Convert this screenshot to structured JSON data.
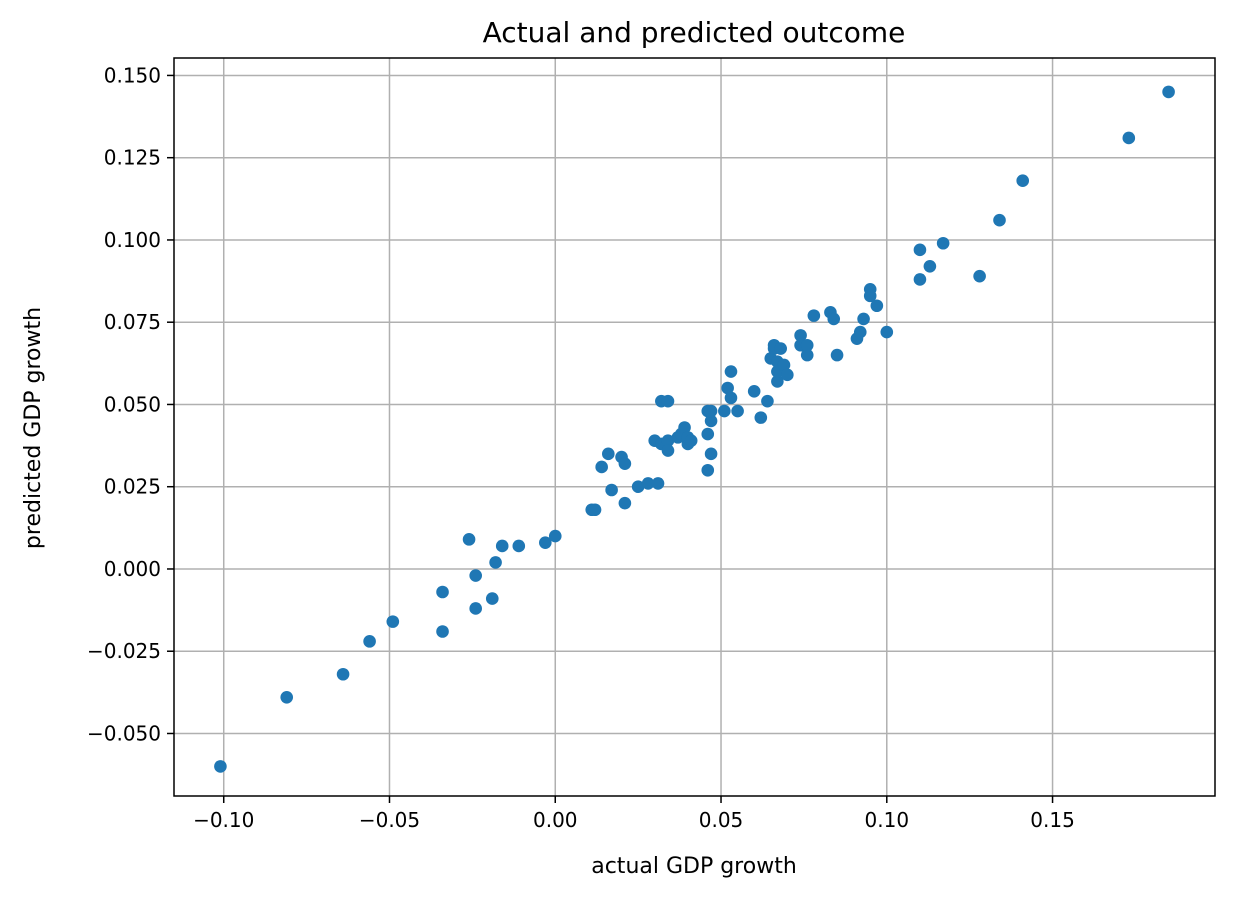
{
  "chart_data": {
    "type": "scatter",
    "title": "Actual and predicted outcome",
    "xlabel": "actual GDP growth",
    "ylabel": "predicted GDP growth",
    "xlim": [
      -0.115,
      0.199
    ],
    "ylim": [
      -0.069,
      0.1553
    ],
    "grid": true,
    "x_ticks": [
      -0.1,
      -0.05,
      0.0,
      0.05,
      0.1,
      0.15
    ],
    "x_tick_labels": [
      "−0.10",
      "−0.05",
      "0.00",
      "0.05",
      "0.10",
      "0.15"
    ],
    "y_ticks": [
      -0.05,
      -0.025,
      0.0,
      0.025,
      0.05,
      0.075,
      0.1,
      0.125,
      0.15
    ],
    "y_tick_labels": [
      "−0.050",
      "−0.025",
      "0.000",
      "0.025",
      "0.050",
      "0.075",
      "0.100",
      "0.125",
      "0.150"
    ],
    "marker_color": "#1f77b4",
    "points": [
      [
        -0.101,
        -0.06
      ],
      [
        -0.081,
        -0.039
      ],
      [
        -0.064,
        -0.032
      ],
      [
        -0.056,
        -0.022
      ],
      [
        -0.049,
        -0.016
      ],
      [
        -0.034,
        -0.007
      ],
      [
        -0.034,
        -0.019
      ],
      [
        -0.026,
        0.009
      ],
      [
        -0.024,
        -0.002
      ],
      [
        -0.024,
        -0.012
      ],
      [
        -0.019,
        -0.009
      ],
      [
        -0.018,
        0.002
      ],
      [
        -0.016,
        0.007
      ],
      [
        -0.011,
        0.007
      ],
      [
        -0.003,
        0.008
      ],
      [
        0.0,
        0.01
      ],
      [
        0.011,
        0.018
      ],
      [
        0.012,
        0.018
      ],
      [
        0.014,
        0.031
      ],
      [
        0.016,
        0.035
      ],
      [
        0.017,
        0.024
      ],
      [
        0.02,
        0.034
      ],
      [
        0.021,
        0.02
      ],
      [
        0.021,
        0.032
      ],
      [
        0.025,
        0.025
      ],
      [
        0.028,
        0.026
      ],
      [
        0.03,
        0.039
      ],
      [
        0.031,
        0.026
      ],
      [
        0.032,
        0.038
      ],
      [
        0.032,
        0.051
      ],
      [
        0.034,
        0.051
      ],
      [
        0.034,
        0.039
      ],
      [
        0.034,
        0.036
      ],
      [
        0.037,
        0.04
      ],
      [
        0.038,
        0.041
      ],
      [
        0.039,
        0.043
      ],
      [
        0.04,
        0.038
      ],
      [
        0.04,
        0.04
      ],
      [
        0.041,
        0.039
      ],
      [
        0.046,
        0.03
      ],
      [
        0.046,
        0.041
      ],
      [
        0.046,
        0.048
      ],
      [
        0.047,
        0.035
      ],
      [
        0.047,
        0.045
      ],
      [
        0.047,
        0.048
      ],
      [
        0.051,
        0.048
      ],
      [
        0.052,
        0.055
      ],
      [
        0.053,
        0.052
      ],
      [
        0.053,
        0.06
      ],
      [
        0.055,
        0.048
      ],
      [
        0.06,
        0.054
      ],
      [
        0.062,
        0.046
      ],
      [
        0.064,
        0.051
      ],
      [
        0.065,
        0.064
      ],
      [
        0.066,
        0.067
      ],
      [
        0.066,
        0.068
      ],
      [
        0.067,
        0.057
      ],
      [
        0.067,
        0.06
      ],
      [
        0.067,
        0.063
      ],
      [
        0.068,
        0.067
      ],
      [
        0.069,
        0.062
      ],
      [
        0.07,
        0.059
      ],
      [
        0.074,
        0.071
      ],
      [
        0.074,
        0.068
      ],
      [
        0.076,
        0.065
      ],
      [
        0.076,
        0.068
      ],
      [
        0.078,
        0.077
      ],
      [
        0.083,
        0.078
      ],
      [
        0.084,
        0.076
      ],
      [
        0.085,
        0.065
      ],
      [
        0.091,
        0.07
      ],
      [
        0.092,
        0.072
      ],
      [
        0.093,
        0.076
      ],
      [
        0.095,
        0.085
      ],
      [
        0.095,
        0.083
      ],
      [
        0.097,
        0.08
      ],
      [
        0.1,
        0.072
      ],
      [
        0.11,
        0.088
      ],
      [
        0.11,
        0.097
      ],
      [
        0.113,
        0.092
      ],
      [
        0.117,
        0.099
      ],
      [
        0.128,
        0.089
      ],
      [
        0.134,
        0.106
      ],
      [
        0.141,
        0.118
      ],
      [
        0.173,
        0.131
      ],
      [
        0.185,
        0.145
      ]
    ]
  }
}
